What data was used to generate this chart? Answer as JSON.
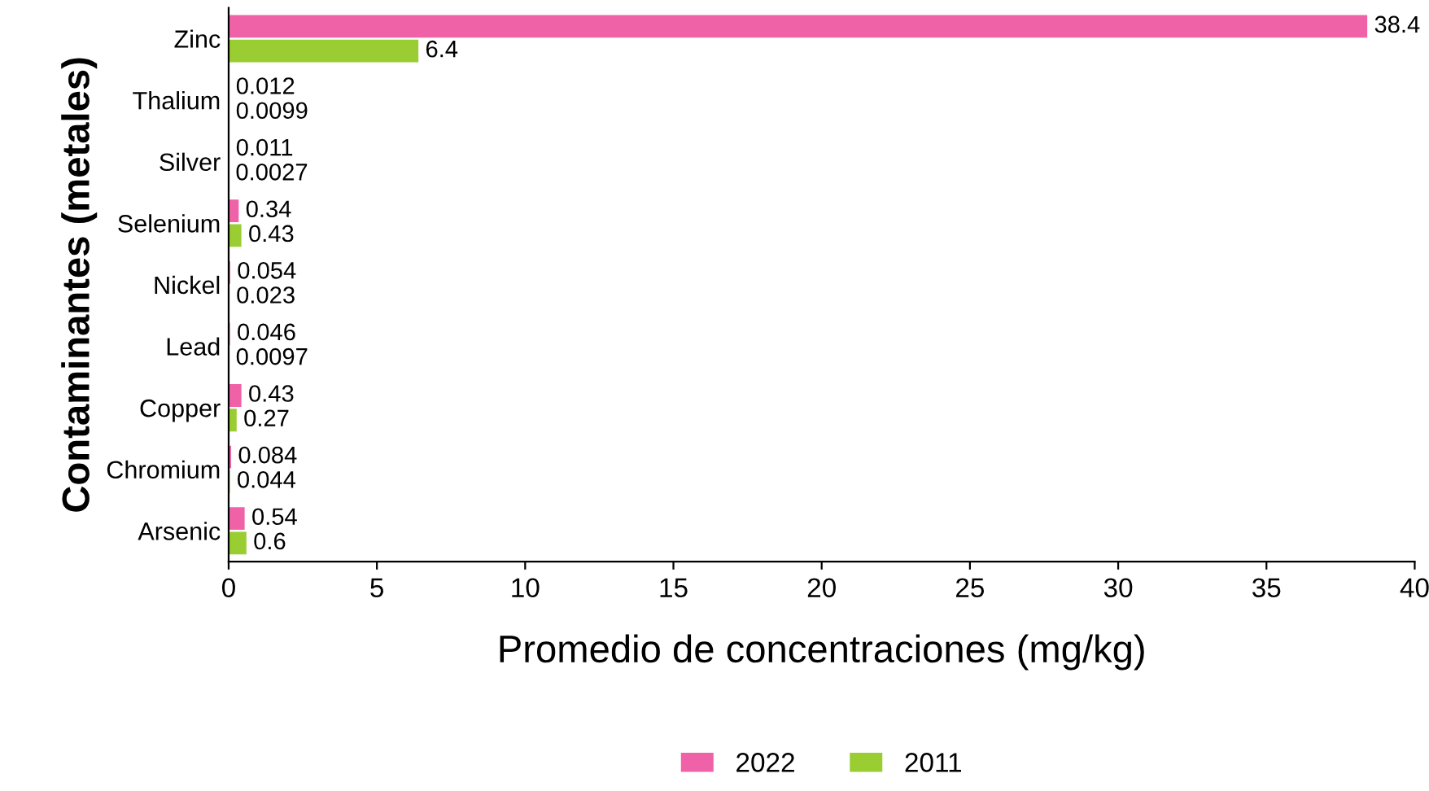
{
  "chart_data": {
    "type": "bar",
    "orientation": "horizontal",
    "xlabel": "Promedio de concentraciones (mg/kg)",
    "ylabel": "Contaminantes (metales)",
    "categories": [
      "Zinc",
      "Thalium",
      "Silver",
      "Selenium",
      "Nickel",
      "Lead",
      "Copper",
      "Chromium",
      "Arsenic"
    ],
    "series": [
      {
        "name": "2022",
        "color": "#f062a8",
        "values": [
          38.4,
          0.012,
          0.011,
          0.34,
          0.054,
          0.046,
          0.43,
          0.084,
          0.54
        ]
      },
      {
        "name": "2011",
        "color": "#9acd32",
        "values": [
          6.4,
          0.0099,
          0.0027,
          0.43,
          0.023,
          0.0097,
          0.27,
          0.044,
          0.6
        ]
      }
    ],
    "xlim": [
      0,
      40
    ],
    "xticks": [
      0,
      5,
      10,
      15,
      20,
      25,
      30,
      35,
      40
    ],
    "data_labels": true,
    "legend": "bottom",
    "grid": false
  }
}
